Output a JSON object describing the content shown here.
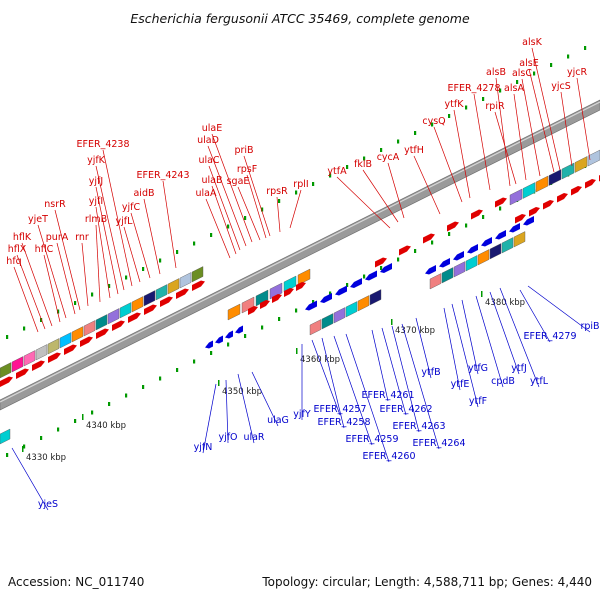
{
  "title": "Escherichia fergusonii ATCC 35469, complete genome",
  "footer": {
    "accession": "Accession: NC_011740",
    "summary": "Topology: circular; Length: 4,588,711 bp; Genes: 4,440"
  },
  "colors": {
    "forward_label": "#d40000",
    "reverse_label": "#0000cc",
    "forward_arrow": "#e00000",
    "reverse_arrow": "#0000dd",
    "backbone": "#888888",
    "ticks": "#009900"
  },
  "scale_labels": [
    "4330 kbp",
    "4340 kbp",
    "4350 kbp",
    "4360 kbp",
    "4370 kbp",
    "4380 kbp"
  ],
  "forward_genes": [
    "hfq",
    "hflX",
    "hflK",
    "hflC",
    "yjeT",
    "purA",
    "nsrR",
    "rnr",
    "rlmB",
    "yjfI",
    "yjfJ",
    "yjfK",
    "EFER_4238",
    "yjfL",
    "yjfC",
    "aidB",
    "EFER_4243",
    "ulaA",
    "ulaB",
    "ulaC",
    "ulaD",
    "ulaE",
    "sgaE",
    "rpsF",
    "priB",
    "rpsR",
    "rplI",
    "ytfA",
    "fklB",
    "cycA",
    "ytfH",
    "cysQ",
    "ytfK",
    "EFER_4278",
    "alsB",
    "rpiR",
    "alsA",
    "alsC",
    "alsE",
    "alsK",
    "yjcS",
    "yjcR"
  ],
  "reverse_genes": [
    "yjeS",
    "yjfN",
    "yjfO",
    "ulaR",
    "ulaG",
    "yjfY",
    "EFER_4257",
    "EFER_4258",
    "EFER_4259",
    "EFER_4260",
    "EFER_4261",
    "EFER_4262",
    "EFER_4263",
    "EFER_4264",
    "ytfB",
    "ytfE",
    "ytfF",
    "ytfG",
    "cpdB",
    "ytfJ",
    "ytfL",
    "EFER_4279",
    "rpiB"
  ]
}
